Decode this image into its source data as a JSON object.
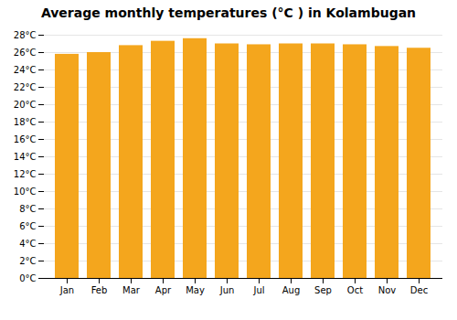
{
  "chart_data": {
    "type": "bar",
    "title": "Average monthly temperatures (°C ) in Kolambugan",
    "categories": [
      "Jan",
      "Feb",
      "Mar",
      "Apr",
      "May",
      "Jun",
      "Jul",
      "Aug",
      "Sep",
      "Oct",
      "Nov",
      "Dec"
    ],
    "values": [
      25.8,
      26.0,
      26.8,
      27.3,
      27.6,
      27.0,
      26.9,
      27.0,
      27.0,
      26.9,
      26.7,
      26.5
    ],
    "color": "#F4A61D",
    "ylim": [
      0,
      28
    ],
    "yticks": [
      {
        "value": 0,
        "label": "0°C"
      },
      {
        "value": 2,
        "label": "2°C"
      },
      {
        "value": 4,
        "label": "4°C"
      },
      {
        "value": 6,
        "label": "6°C"
      },
      {
        "value": 8,
        "label": "8°C"
      },
      {
        "value": 10,
        "label": "10°C"
      },
      {
        "value": 12,
        "label": "12°C"
      },
      {
        "value": 14,
        "label": "14°C"
      },
      {
        "value": 16,
        "label": "16°C"
      },
      {
        "value": 18,
        "label": "18°C"
      },
      {
        "value": 20,
        "label": "20°C"
      },
      {
        "value": 22,
        "label": "22°C"
      },
      {
        "value": 24,
        "label": "24°C"
      },
      {
        "value": 26,
        "label": "26°C"
      },
      {
        "value": 28,
        "label": "28°C"
      }
    ],
    "grid": true
  }
}
